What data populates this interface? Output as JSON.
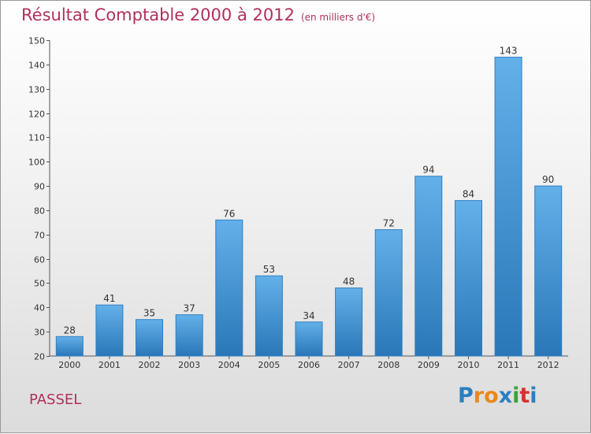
{
  "header": {
    "title": "Résultat Comptable 2000 à 2012",
    "subtitle": "(en milliers d'€)"
  },
  "footer": {
    "commune": "PASSEL",
    "logo_letters": [
      "P",
      "r",
      "o",
      "x",
      "i",
      "t",
      "i"
    ],
    "logo_colors": [
      "#2a7fc0",
      "#e8891a",
      "#e8891a",
      "#2a7fc0",
      "#3aa33a",
      "#d93030",
      "#2a7fc0"
    ]
  },
  "colors": {
    "bar_light": "#63b0ea",
    "bar_dark": "#2a77b8",
    "bar_stroke": "#2f7fc2",
    "text": "#333333",
    "accent": "#b0305a"
  },
  "chart_data": {
    "type": "bar",
    "title": "Résultat Comptable 2000 à 2012",
    "xlabel": "",
    "ylabel": "",
    "ylim": [
      20,
      150
    ],
    "yticks": [
      20,
      30,
      40,
      50,
      60,
      70,
      80,
      90,
      100,
      110,
      120,
      130,
      140,
      150
    ],
    "categories": [
      "2000",
      "2001",
      "2002",
      "2003",
      "2004",
      "2005",
      "2006",
      "2007",
      "2008",
      "2009",
      "2010",
      "2011",
      "2012"
    ],
    "values": [
      28,
      41,
      35,
      37,
      76,
      53,
      34,
      48,
      72,
      94,
      84,
      143,
      90
    ],
    "grid": false,
    "legend": "none"
  }
}
